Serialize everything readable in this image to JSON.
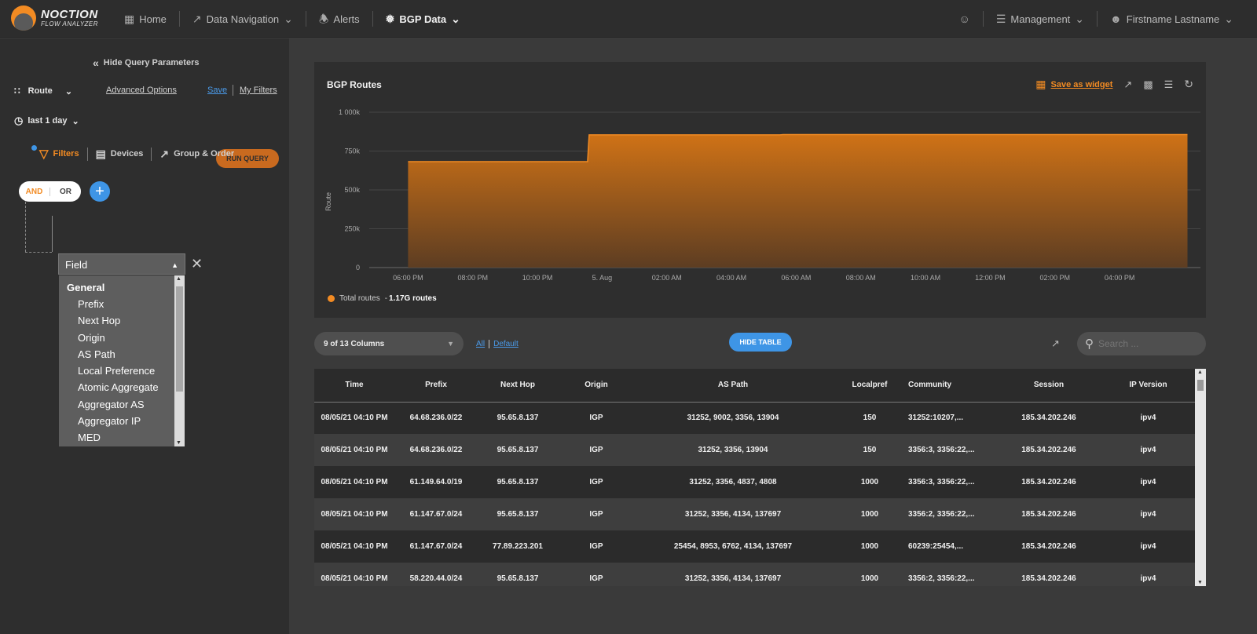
{
  "app": {
    "brand_line1": "NOCTION",
    "brand_line2": "FLOW ANALYZER"
  },
  "nav": {
    "home": "Home",
    "data_navigation": "Data Navigation",
    "alerts": "Alerts",
    "bgp_data": "BGP Data",
    "management": "Management",
    "user": "Firstname Lastname"
  },
  "sidebar": {
    "hide_query": "Hide Query Parameters",
    "route_select": "Route",
    "advanced_options": "Advanced Options",
    "save": "Save",
    "my_filters": "My Filters",
    "time_range": "last 1 day",
    "run_query": "RUN QUERY",
    "tabs": {
      "filters": "Filters",
      "devices": "Devices",
      "group_order": "Group & Order"
    },
    "and": "AND",
    "or": "OR",
    "field_placeholder": "Field",
    "dropdown": {
      "group": "General",
      "options": [
        "Prefix",
        "Next Hop",
        "Origin",
        "AS Path",
        "Local Preference",
        "Atomic Aggregate",
        "Aggregator AS",
        "Aggregator IP",
        "MED"
      ]
    }
  },
  "chart_panel": {
    "title": "BGP Routes",
    "save_widget": "Save as widget"
  },
  "chart_data": {
    "type": "area",
    "title": "BGP Routes",
    "ylabel": "Route",
    "ylim": [
      0,
      1000000
    ],
    "y_ticks": [
      "0",
      "250k",
      "500k",
      "750k",
      "1 000k"
    ],
    "x_ticks": [
      "06:00 PM",
      "08:00 PM",
      "10:00 PM",
      "5. Aug",
      "02:00 AM",
      "04:00 AM",
      "06:00 AM",
      "08:00 AM",
      "10:00 AM",
      "12:00 PM",
      "02:00 PM",
      "04:00 PM"
    ],
    "x_hours": [
      0,
      5.55,
      5.6,
      11.5,
      11.6,
      24.1
    ],
    "y_values": [
      682000,
      682000,
      854000,
      854000,
      856000,
      856000
    ],
    "series": [
      {
        "name": "Total routes",
        "summary": "1.17G routes",
        "color": "#f28b23"
      }
    ],
    "grid": true,
    "legend": "bottom-left"
  },
  "table_controls": {
    "columns": "9 of 13 Columns",
    "all": "All",
    "default": "Default",
    "hide_table": "HIDE TABLE",
    "search_placeholder": "Search ..."
  },
  "table": {
    "headers": [
      "Time",
      "Prefix",
      "Next Hop",
      "Origin",
      "AS Path",
      "Localpref",
      "Community",
      "Session",
      "IP Version"
    ],
    "rows": [
      [
        "08/05/21 04:10 PM",
        "64.68.236.0/22",
        "95.65.8.137",
        "IGP",
        "31252, 9002, 3356, 13904",
        "150",
        "31252:10207,...",
        "185.34.202.246",
        "ipv4"
      ],
      [
        "08/05/21 04:10 PM",
        "64.68.236.0/22",
        "95.65.8.137",
        "IGP",
        "31252, 3356, 13904",
        "150",
        "3356:3, 3356:22,...",
        "185.34.202.246",
        "ipv4"
      ],
      [
        "08/05/21 04:10 PM",
        "61.149.64.0/19",
        "95.65.8.137",
        "IGP",
        "31252, 3356, 4837, 4808",
        "1000",
        "3356:3, 3356:22,...",
        "185.34.202.246",
        "ipv4"
      ],
      [
        "08/05/21 04:10 PM",
        "61.147.67.0/24",
        "95.65.8.137",
        "IGP",
        "31252, 3356, 4134, 137697",
        "1000",
        "3356:2, 3356:22,...",
        "185.34.202.246",
        "ipv4"
      ],
      [
        "08/05/21 04:10 PM",
        "61.147.67.0/24",
        "77.89.223.201",
        "IGP",
        "25454, 8953, 6762, 4134, 137697",
        "1000",
        "60239:25454,...",
        "185.34.202.246",
        "ipv4"
      ],
      [
        "08/05/21 04:10 PM",
        "58.220.44.0/24",
        "95.65.8.137",
        "IGP",
        "31252, 3356, 4134, 137697",
        "1000",
        "3356:2, 3356:22,...",
        "185.34.202.246",
        "ipv4"
      ]
    ]
  }
}
